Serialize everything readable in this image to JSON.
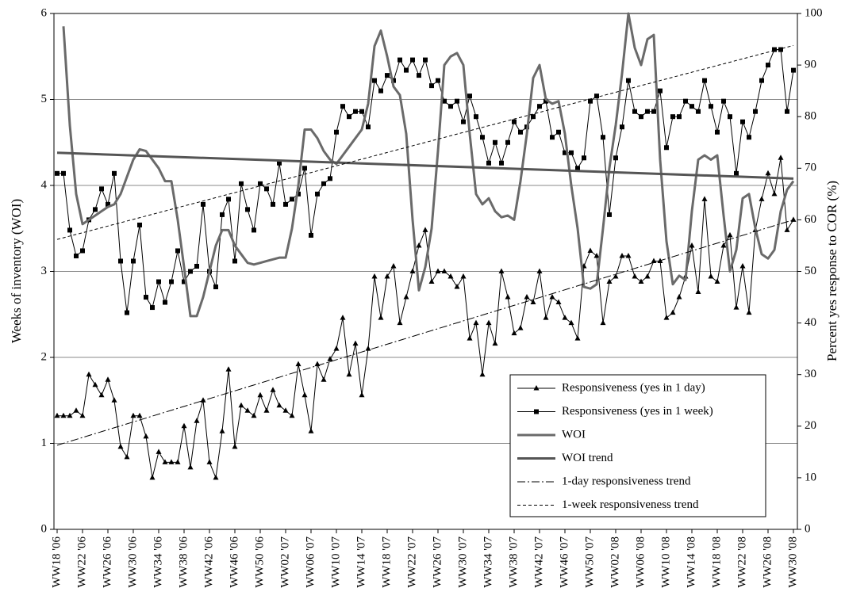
{
  "chart_data": {
    "type": "line",
    "y_label": "Weeks of inventory (WOI)",
    "y2_label": "Percent yes response to COR (%)",
    "categories": [
      "WW18 '06",
      null,
      null,
      null,
      "WW22 '06",
      null,
      null,
      null,
      "WW26 '06",
      null,
      null,
      null,
      "WW30 '06",
      null,
      null,
      null,
      "WW34 '06",
      null,
      null,
      null,
      "WW38 '06",
      null,
      null,
      null,
      "WW42 '06",
      null,
      null,
      null,
      "WW46 '06",
      null,
      null,
      null,
      "WW50 '06",
      null,
      null,
      null,
      "WW02 '07",
      null,
      null,
      null,
      "WW06 '07",
      null,
      null,
      null,
      "WW10 '07",
      null,
      null,
      null,
      "WW14 '07",
      null,
      null,
      null,
      "WW18 '07",
      null,
      null,
      null,
      "WW22 '07",
      null,
      null,
      null,
      "WW26 '07",
      null,
      null,
      null,
      "WW30 '07",
      null,
      null,
      null,
      "WW34 '07",
      null,
      null,
      null,
      "WW38 '07",
      null,
      null,
      null,
      "WW42 '07",
      null,
      null,
      null,
      "WW46 '07",
      null,
      null,
      null,
      "WW50 '07",
      null,
      null,
      null,
      "WW02 '08",
      null,
      null,
      null,
      "WW06 '08",
      null,
      null,
      null,
      "WW10 '08",
      null,
      null,
      null,
      "WW14 '08",
      null,
      null,
      null,
      "WW18 '08",
      null,
      null,
      null,
      "WW22 '08",
      null,
      null,
      null,
      "WW26 '08",
      null,
      null,
      null,
      "WW30 '08"
    ],
    "ylim": [
      0,
      6
    ],
    "yticks": [
      0,
      1,
      2,
      3,
      4,
      5,
      6
    ],
    "y2lim": [
      0,
      100
    ],
    "y2ticks": [
      0,
      10,
      20,
      30,
      40,
      50,
      60,
      70,
      80,
      90,
      100
    ],
    "grid": true,
    "series": [
      {
        "name": "Responsiveness (yes in 1 day)",
        "color": "#000000",
        "axis": "y2",
        "marker": "triangle",
        "values": [
          22,
          22,
          22,
          23,
          22,
          30,
          28,
          26,
          29,
          25,
          16,
          14,
          22,
          22,
          18,
          10,
          15,
          13,
          13,
          13,
          20,
          12,
          21,
          25,
          13,
          10,
          19,
          31,
          16,
          24,
          23,
          22,
          26,
          23,
          27,
          24,
          23,
          22,
          32,
          26,
          19,
          32,
          29,
          33,
          35,
          41,
          30,
          36,
          26,
          35,
          49,
          41,
          49,
          51,
          40,
          45,
          50,
          55,
          58,
          48,
          50,
          50,
          49,
          47,
          49,
          37,
          40,
          30,
          40,
          36,
          50,
          45,
          38,
          39,
          45,
          44,
          50,
          41,
          45,
          44,
          41,
          40,
          37,
          51,
          54,
          53,
          40,
          48,
          49,
          53,
          53,
          49,
          48,
          49,
          52,
          52,
          41,
          42,
          45,
          49,
          55,
          46,
          64,
          49,
          48,
          55,
          57,
          43,
          51,
          42,
          58,
          64,
          69,
          65,
          72,
          58,
          60
        ]
      },
      {
        "name": "Responsiveness (yes in 1 week)",
        "color": "#000000",
        "axis": "y2",
        "marker": "square",
        "values": [
          69,
          69,
          58,
          53,
          54,
          60,
          62,
          66,
          63,
          69,
          52,
          42,
          52,
          59,
          45,
          43,
          48,
          44,
          48,
          54,
          48,
          50,
          51,
          63,
          50,
          47,
          61,
          64,
          52,
          67,
          62,
          58,
          67,
          66,
          63,
          71,
          63,
          64,
          65,
          70,
          57,
          65,
          67,
          68,
          77,
          82,
          80,
          81,
          81,
          78,
          87,
          85,
          88,
          87,
          91,
          89,
          91,
          88,
          91,
          86,
          87,
          83,
          82,
          83,
          79,
          84,
          80,
          76,
          71,
          75,
          71,
          75,
          79,
          77,
          78,
          80,
          82,
          83,
          76,
          77,
          73,
          73,
          70,
          72,
          83,
          84,
          76,
          61,
          72,
          78,
          87,
          81,
          80,
          81,
          81,
          85,
          74,
          80,
          80,
          83,
          82,
          81,
          87,
          82,
          77,
          83,
          80,
          69,
          79,
          76,
          81,
          87,
          90,
          93,
          93,
          81,
          89
        ]
      },
      {
        "name": "WOI",
        "color": "#6a6a6a",
        "axis": "y",
        "line_width": 3,
        "values": [
          null,
          5.85,
          4.7,
          3.9,
          3.55,
          3.6,
          3.65,
          3.7,
          3.75,
          3.78,
          3.9,
          4.1,
          4.3,
          4.42,
          4.4,
          4.3,
          4.2,
          4.05,
          4.05,
          3.6,
          3.05,
          2.48,
          2.48,
          2.7,
          3.0,
          3.3,
          3.48,
          3.48,
          3.3,
          3.2,
          3.1,
          3.08,
          3.1,
          3.12,
          3.14,
          3.16,
          3.16,
          3.5,
          4.0,
          4.65,
          4.65,
          4.55,
          4.4,
          4.3,
          4.25,
          4.35,
          4.45,
          4.55,
          4.65,
          4.95,
          5.62,
          5.8,
          5.5,
          5.15,
          5.05,
          4.6,
          3.6,
          2.78,
          3.05,
          3.5,
          4.4,
          5.4,
          5.5,
          5.54,
          5.4,
          4.6,
          3.9,
          3.78,
          3.85,
          3.7,
          3.63,
          3.65,
          3.6,
          4.05,
          4.6,
          5.25,
          5.4,
          5.0,
          4.95,
          4.98,
          4.6,
          4.0,
          3.5,
          2.82,
          2.8,
          2.85,
          3.5,
          4.2,
          4.7,
          5.3,
          6.0,
          5.6,
          5.4,
          5.7,
          5.75,
          4.3,
          3.35,
          2.85,
          2.95,
          2.9,
          3.7,
          4.3,
          4.35,
          4.3,
          4.35,
          3.65,
          3.0,
          3.25,
          3.85,
          3.9,
          3.5,
          3.2,
          3.15,
          3.25,
          3.7,
          3.95,
          4.05
        ]
      },
      {
        "name": "WOI trend",
        "color": "#555555",
        "axis": "y",
        "line_width": 3,
        "trend": [
          4.38,
          4.08
        ]
      },
      {
        "name": "1-day responsiveness trend",
        "color": "#000000",
        "axis": "y2",
        "dash": "dashdot",
        "trend": [
          16.3,
          60
        ]
      },
      {
        "name": "1-week responsiveness trend",
        "color": "#000000",
        "axis": "y2",
        "dash": "dashed",
        "trend": [
          56.2,
          93.8
        ]
      }
    ]
  }
}
